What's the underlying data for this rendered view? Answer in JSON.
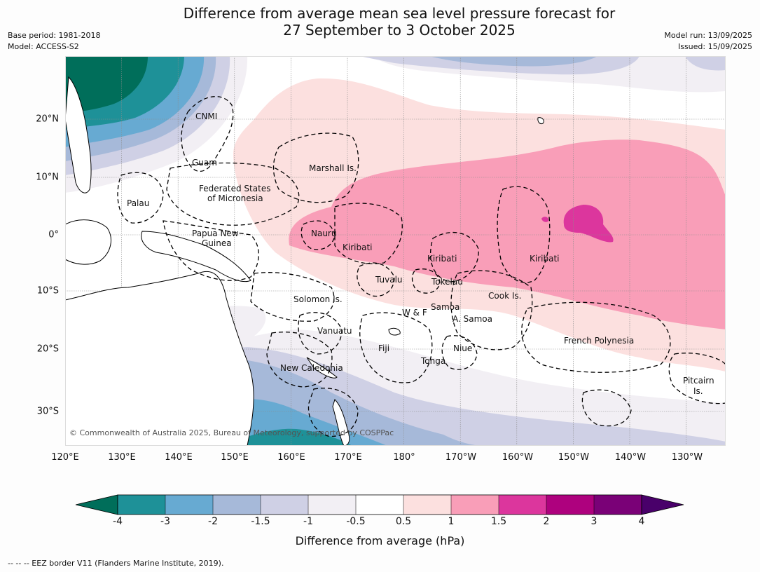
{
  "title_line1": "Difference from average mean sea level pressure forecast for",
  "title_line2": "27 September to 3 October 2025",
  "base_period": "Base period: 1981-2018",
  "model": "Model: ACCESS-S2",
  "model_run": "Model run: 13/09/2025",
  "issued": "Issued: 15/09/2025",
  "copyright": "© Commonwealth of Australia 2025, Bureau of Meteorology, supported by COSPPac",
  "footnote": "--  --  -- EEZ border V11 (Flanders Marine Institute, 2019).",
  "lon_labels": [
    "120°E",
    "130°E",
    "140°E",
    "150°E",
    "160°E",
    "170°E",
    "180°",
    "170°W",
    "160°W",
    "150°W",
    "140°W",
    "130°W"
  ],
  "lat_labels": [
    "20°N",
    "10°N",
    "0°",
    "10°S",
    "20°S",
    "30°S"
  ],
  "places": {
    "cnmi": "CNMI",
    "guam": "Guam",
    "marshall": "Marshall Is.",
    "fsm1": "Federated States",
    "fsm2": "of Micronesia",
    "palau": "Palau",
    "png1": "Papua New",
    "png2": "Guinea",
    "nauru": "Nauru",
    "kiribati_w": "Kiribati",
    "kiribati_c": "Kiribati",
    "kiribati_e": "Kiribati",
    "tuvalu": "Tuvalu",
    "tokelau": "Tokelau",
    "cook": "Cook Is.",
    "solomon": "Solomon Is.",
    "samoa": "Samoa",
    "wf": "W & F",
    "asamoa": "A. Samoa",
    "vanuatu": "Vanuatu",
    "fiji": "Fiji",
    "niue": "Niue",
    "tonga": "Tonga",
    "new_caledonia": "New Caledonia",
    "french_polynesia": "French Polynesia",
    "pitcairn1": "Pitcairn",
    "pitcairn2": "Is."
  },
  "colorbar": {
    "label": "Difference from average (hPa)",
    "ticks": [
      "-4",
      "-3",
      "-2",
      "-1.5",
      "-1",
      "-0.5",
      "0.5",
      "1",
      "1.5",
      "2",
      "3",
      "4"
    ],
    "colors": {
      "below_-4": "#006e5a",
      "-4_-3": "#1e9198",
      "-3_-2": "#67aad2",
      "-2_-1.5": "#a6b9d9",
      "-1.5_-1": "#cfd0e5",
      "-1_-0.5": "#f2eff4",
      "-0.5_0.5": "#ffffff",
      "0.5_1": "#fce0df",
      "1_1.5": "#f99eb8",
      "1.5_2": "#dc369d",
      "2_3": "#ae017e",
      "3_4": "#7a0177",
      "above_4": "#49006a"
    }
  },
  "map_extent": {
    "lon_min": 120,
    "lon_max": 237,
    "lat_min": -36,
    "lat_max": 31
  }
}
